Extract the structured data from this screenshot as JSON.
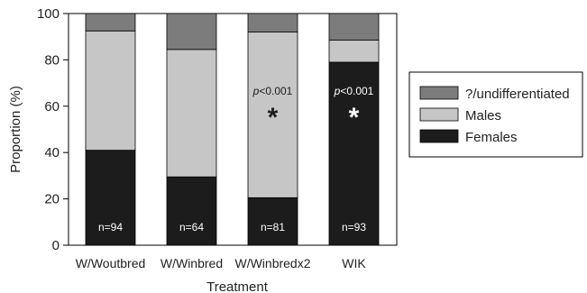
{
  "chart_data": {
    "type": "bar",
    "stacked": true,
    "categories": [
      "W/Woutbred",
      "W/Winbred",
      "W/Winbredx2",
      "WIK"
    ],
    "series": [
      {
        "name": "Females",
        "values": [
          41,
          29.5,
          20.5,
          79
        ],
        "color": "#1c1c1c"
      },
      {
        "name": "Males",
        "values": [
          51.5,
          55,
          71.5,
          9.5
        ],
        "color": "#c6c6c6"
      },
      {
        "name": "?/undifferentiated",
        "values": [
          7.5,
          15.5,
          8,
          11.5
        ],
        "color": "#7c7c7c"
      }
    ],
    "legend_order": [
      "?/undifferentiated",
      "Males",
      "Females"
    ],
    "n_labels": [
      "n=94",
      "n=64",
      "n=81",
      "n=93"
    ],
    "annotations": [
      {
        "category": "W/Winbredx2",
        "p_text": "p<0.001",
        "marker": "*",
        "color": "#1c1c1c"
      },
      {
        "category": "WIK",
        "p_text": "p<0.001",
        "marker": "*",
        "color": "#ffffff"
      }
    ],
    "xlabel": "Treatment",
    "ylabel": "Proportion (%)",
    "ylim": [
      0,
      100
    ],
    "yticks": [
      0,
      20,
      40,
      60,
      80,
      100
    ],
    "grid": false,
    "legend_position": "right"
  }
}
